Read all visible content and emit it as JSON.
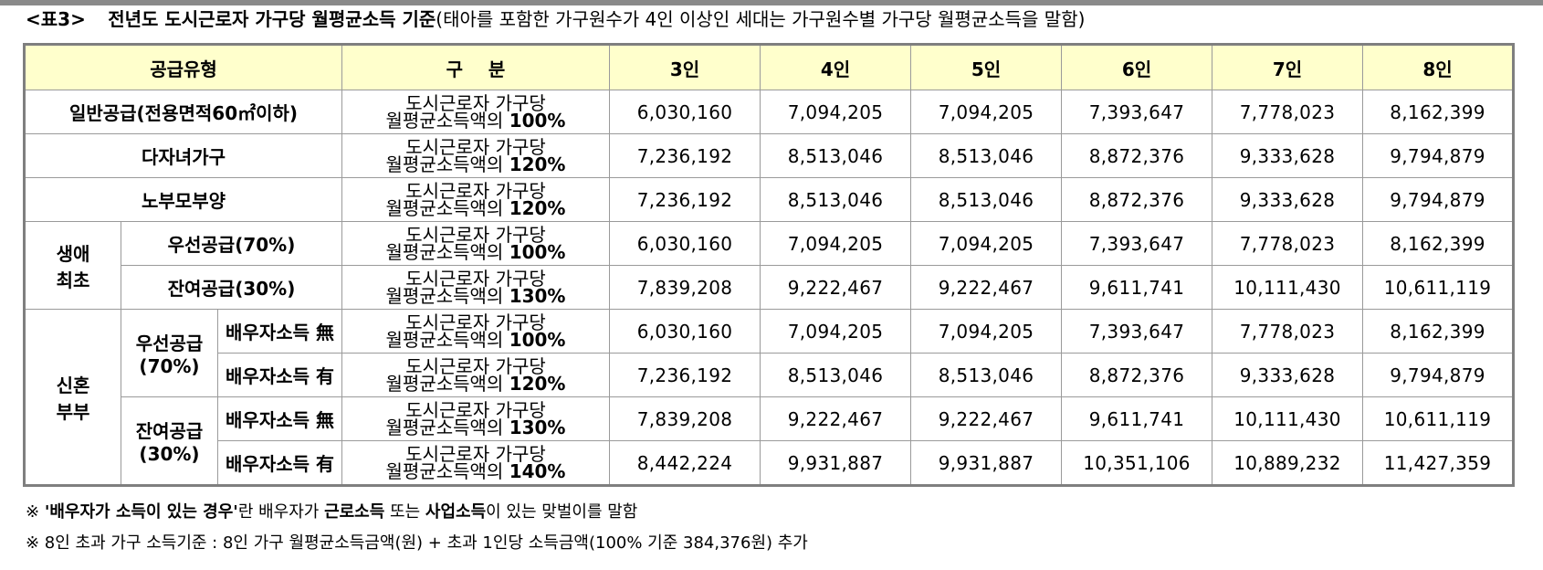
{
  "title": {
    "label": "<표3>",
    "main": "전년도 도시근로자 가구당 월평균소득 기준",
    "sub": "(태아를 포함한 가구원수가 4인 이상인 세대는 가구원수별 가구당 월평균소득을 말함)"
  },
  "table": {
    "headers": {
      "supply_type": "공급유형",
      "category": "구    분",
      "cols": [
        "3인",
        "4인",
        "5인",
        "6인",
        "7인",
        "8인"
      ]
    },
    "criteria_prefix_1": "도시근로자 가구당",
    "criteria_prefix_2": "월평균소득액의",
    "groups": {
      "first_life": "생애\n최초",
      "newlywed": "신혼\n부부",
      "priority": "우선공급\n(70%)",
      "remaining": "잔여공급\n(30%)"
    },
    "rows": [
      {
        "label": "일반공급(전용면적60㎡이하)",
        "pct": "100%",
        "values": [
          "6,030,160",
          "7,094,205",
          "7,094,205",
          "7,393,647",
          "7,778,023",
          "8,162,399"
        ]
      },
      {
        "label": "다자녀가구",
        "pct": "120%",
        "values": [
          "7,236,192",
          "8,513,046",
          "8,513,046",
          "8,872,376",
          "9,333,628",
          "9,794,879"
        ]
      },
      {
        "label": "노부모부양",
        "pct": "120%",
        "values": [
          "7,236,192",
          "8,513,046",
          "8,513,046",
          "8,872,376",
          "9,333,628",
          "9,794,879"
        ]
      },
      {
        "label": "우선공급(70%)",
        "pct": "100%",
        "values": [
          "6,030,160",
          "7,094,205",
          "7,094,205",
          "7,393,647",
          "7,778,023",
          "8,162,399"
        ]
      },
      {
        "label": "잔여공급(30%)",
        "pct": "130%",
        "values": [
          "7,839,208",
          "9,222,467",
          "9,222,467",
          "9,611,741",
          "10,111,430",
          "10,611,119"
        ]
      },
      {
        "label": "배우자소득 無",
        "pct": "100%",
        "values": [
          "6,030,160",
          "7,094,205",
          "7,094,205",
          "7,393,647",
          "7,778,023",
          "8,162,399"
        ]
      },
      {
        "label": "배우자소득 有",
        "pct": "120%",
        "values": [
          "7,236,192",
          "8,513,046",
          "8,513,046",
          "8,872,376",
          "9,333,628",
          "9,794,879"
        ]
      },
      {
        "label": "배우자소득 無",
        "pct": "130%",
        "values": [
          "7,839,208",
          "9,222,467",
          "9,222,467",
          "9,611,741",
          "10,111,430",
          "10,611,119"
        ]
      },
      {
        "label": "배우자소득 有",
        "pct": "140%",
        "values": [
          "8,442,224",
          "9,931,887",
          "9,931,887",
          "10,351,106",
          "10,889,232",
          "11,427,359"
        ]
      }
    ]
  },
  "footnotes": {
    "note1": {
      "mark": "※",
      "bold1": "'배우자가 소득이 있는 경우'",
      "text1": "란 배우자가 ",
      "bold2": "근로소득",
      "text2": " 또는 ",
      "bold3": "사업소득",
      "text3": "이 있는 맞벌이를 말함"
    },
    "note2": "※ 8인 초과 가구 소득기준 : 8인 가구 월평균소득금액(원) + 초과 1인당 소득금액(100% 기준 384,376원) 추가"
  }
}
